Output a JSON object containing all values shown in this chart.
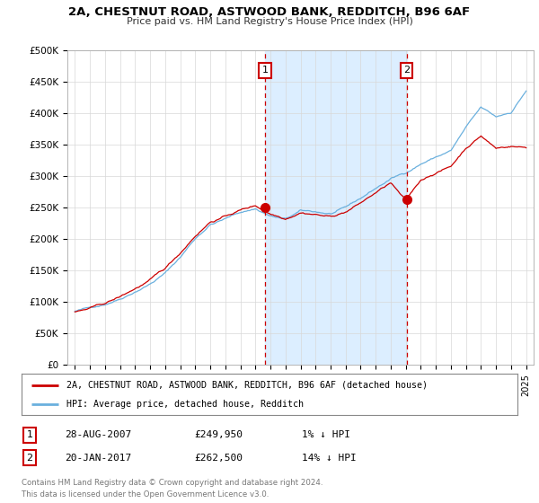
{
  "title": "2A, CHESTNUT ROAD, ASTWOOD BANK, REDDITCH, B96 6AF",
  "subtitle": "Price paid vs. HM Land Registry's House Price Index (HPI)",
  "ylabel_ticks": [
    "£0",
    "£50K",
    "£100K",
    "£150K",
    "£200K",
    "£250K",
    "£300K",
    "£350K",
    "£400K",
    "£450K",
    "£500K"
  ],
  "ytick_values": [
    0,
    50000,
    100000,
    150000,
    200000,
    250000,
    300000,
    350000,
    400000,
    450000,
    500000
  ],
  "ylim": [
    0,
    500000
  ],
  "red_line_color": "#cc0000",
  "blue_line_color": "#6ab0de",
  "shade_color": "#dceeff",
  "marker1_date_x": 2007.65,
  "marker1_value": 249950,
  "marker2_date_x": 2017.05,
  "marker2_value": 262500,
  "legend_label_red": "2A, CHESTNUT ROAD, ASTWOOD BANK, REDDITCH, B96 6AF (detached house)",
  "legend_label_blue": "HPI: Average price, detached house, Redditch",
  "table_row1": [
    "1",
    "28-AUG-2007",
    "£249,950",
    "1% ↓ HPI"
  ],
  "table_row2": [
    "2",
    "20-JAN-2017",
    "£262,500",
    "14% ↓ HPI"
  ],
  "footer": "Contains HM Land Registry data © Crown copyright and database right 2024.\nThis data is licensed under the Open Government Licence v3.0.",
  "vline1_x": 2007.65,
  "vline2_x": 2017.05,
  "background_color": "#ffffff",
  "grid_color": "#d8d8d8",
  "xlim_left": 1994.5,
  "xlim_right": 2025.5
}
